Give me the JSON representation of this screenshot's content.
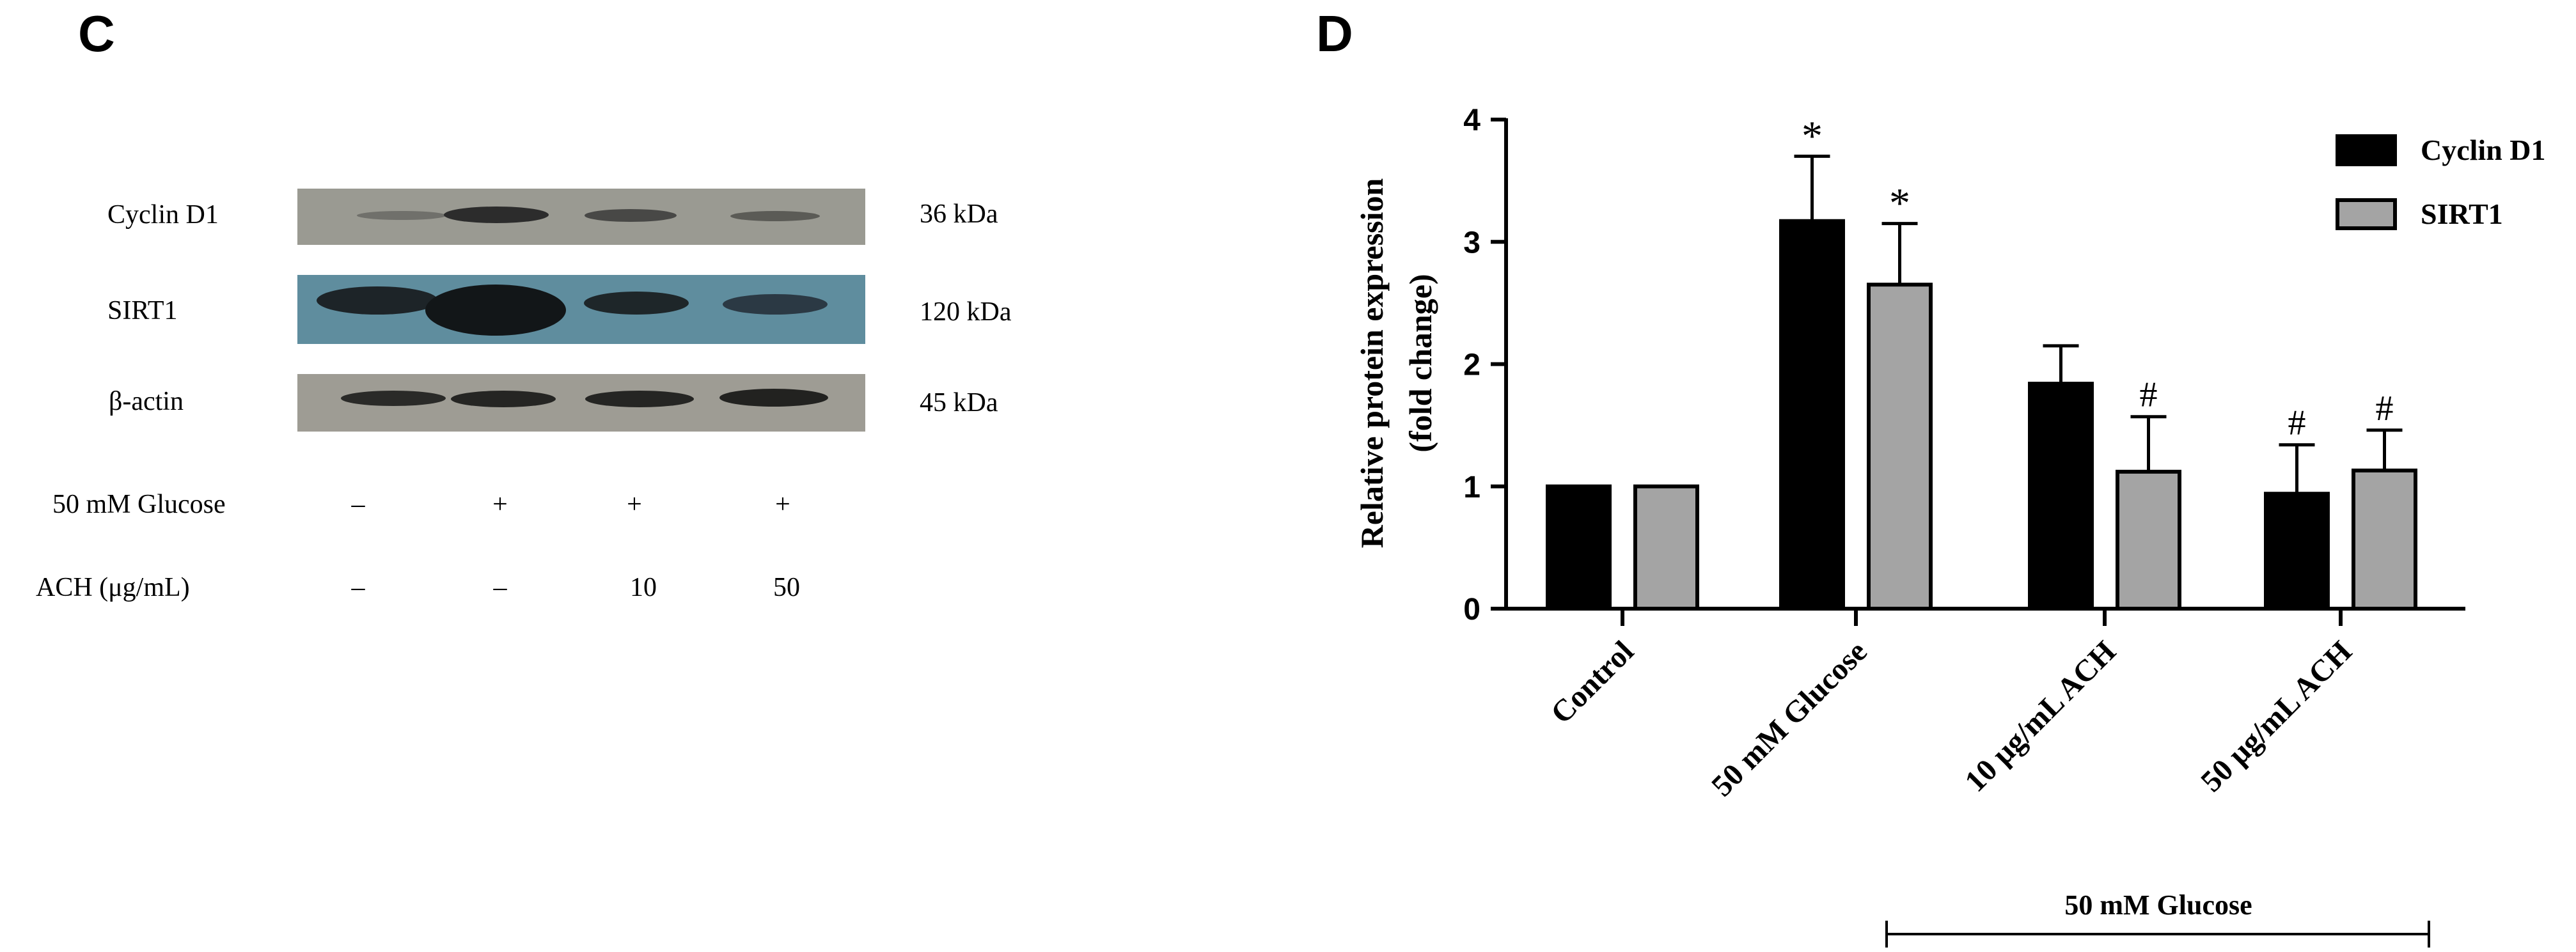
{
  "panel_c": {
    "letter": "C",
    "blots": [
      {
        "name": "Cyclin D1",
        "kda": "36 kDa"
      },
      {
        "name": "SIRT1",
        "kda": "120 kDa"
      },
      {
        "name": "β-actin",
        "kda": "45 kDa"
      }
    ],
    "conditions": [
      {
        "label": "50 mM Glucose",
        "values": [
          "–",
          "+",
          "+",
          "+"
        ]
      },
      {
        "label": "ACH (μg/mL)",
        "values": [
          "–",
          "–",
          "10",
          "50"
        ]
      }
    ],
    "colors": {
      "cyclin_bg": "#9a9a92",
      "sirt_bg": "#5f8d9e",
      "actin_bg": "#9e9c94",
      "band": "#2c2c2c"
    }
  },
  "panel_d": {
    "letter": "D",
    "bracket_label": "50 mM Glucose"
  },
  "chart_data": {
    "type": "bar",
    "title": "",
    "ylabel": "Relative protein expression (fold change)",
    "ylabel_lines": [
      "Relative protein expression",
      "(fold change)"
    ],
    "xlabel": "",
    "ylim": [
      0,
      4
    ],
    "yticks": [
      0,
      1,
      2,
      3,
      4
    ],
    "categories": [
      "Control",
      "50 mM Glucose",
      "10 μg/mL ACH",
      "50 μg/mL ACH"
    ],
    "series": [
      {
        "name": "Cyclin D1",
        "color": "#000000",
        "values": [
          1.0,
          3.17,
          1.84,
          0.94
        ],
        "errors": [
          0.0,
          0.53,
          0.31,
          0.4
        ],
        "annotations": [
          "",
          "*",
          "",
          "#"
        ]
      },
      {
        "name": "SIRT1",
        "color": "#a4a4a4",
        "values": [
          1.0,
          2.65,
          1.12,
          1.13
        ],
        "errors": [
          0.0,
          0.5,
          0.45,
          0.33
        ],
        "annotations": [
          "",
          "*",
          "#",
          "#"
        ]
      }
    ],
    "legend": "top-right"
  }
}
